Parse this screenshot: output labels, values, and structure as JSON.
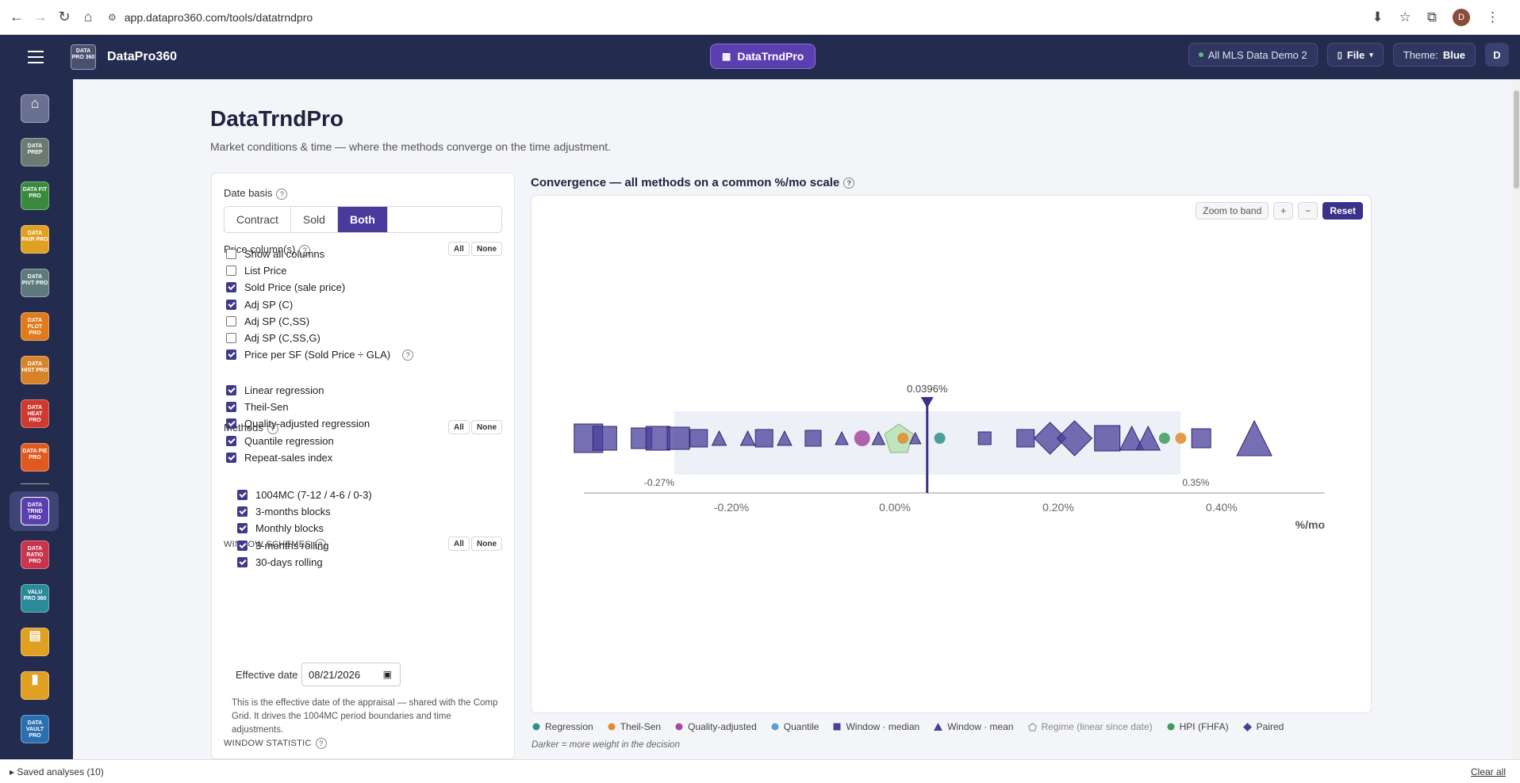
{
  "browser": {
    "url": "app.datapro360.com/tools/datatrndpro"
  },
  "topbar": {
    "brand": "DataPro360",
    "logo_text": "DATA PRO 360",
    "app": "DataTrndPro",
    "dataset": "All MLS Data Demo 2",
    "file": "File",
    "theme_label": "Theme:",
    "theme_value": "Blue",
    "user_initial": "D",
    "browser_avatar": "D"
  },
  "sidebar": {
    "items": [
      "DATA PREP",
      "DATA FIT PRO",
      "DATA PAIR PRO",
      "DATA PIVT PRO",
      "DATA PLOT PRO",
      "DATA HIST PRO",
      "DATA HEAT PRO",
      "DATA PIE PRO",
      "DATA TRND PRO",
      "DATA RATIO PRO",
      "VALU PRO 360",
      "",
      "",
      "DATA VAULT PRO"
    ]
  },
  "page": {
    "title": "DataTrndPro",
    "subtitle": "Market conditions & time — where the methods converge on the time adjustment."
  },
  "panel": {
    "date_basis_label": "Date basis",
    "date_basis": [
      "Contract",
      "Sold",
      "Both"
    ],
    "price_label": "Price column(s)",
    "all": "All",
    "none": "None",
    "price_items": [
      {
        "label": "Show all columns",
        "checked": false
      },
      {
        "label": "List Price",
        "checked": false
      },
      {
        "label": "Sold Price (sale price)",
        "checked": true
      },
      {
        "label": "Adj SP (C)",
        "checked": true
      },
      {
        "label": "Adj SP (C,SS)",
        "checked": false
      },
      {
        "label": "Adj SP (C,SS,G)",
        "checked": false
      },
      {
        "label": "Price per SF (Sold Price ÷ GLA)",
        "checked": true
      }
    ],
    "methods_label": "Methods",
    "methods": [
      {
        "label": "Linear regression",
        "checked": true
      },
      {
        "label": "Theil-Sen",
        "checked": true
      },
      {
        "label": "Quality-adjusted regression",
        "checked": true
      },
      {
        "label": "Quantile regression",
        "checked": true
      },
      {
        "label": "Repeat-sales index",
        "checked": true
      }
    ],
    "windows_label": "WINDOW SCHEMES",
    "windows": [
      {
        "label": "1004MC (7-12 / 4-6 / 0-3)",
        "checked": true
      },
      {
        "label": "3-months blocks",
        "checked": true
      },
      {
        "label": "Monthly blocks",
        "checked": true
      },
      {
        "label": "3-months rolling",
        "checked": true
      },
      {
        "label": "30-days rolling",
        "checked": true
      }
    ],
    "effective_label": "Effective date",
    "effective_value": "08/21/2026",
    "effective_note": "This is the effective date of the appraisal — shared with the Comp Grid. It drives the 1004MC period boundaries and time adjustments.",
    "statistic_label": "WINDOW STATISTIC"
  },
  "chart": {
    "title": "Convergence — all methods on a common %/mo scale",
    "zoom": "Zoom to band",
    "plus": "+",
    "minus": "−",
    "reset": "Reset",
    "legend": [
      {
        "label": "Regression",
        "color": "#2f8f8a",
        "shape": "circle"
      },
      {
        "label": "Theil-Sen",
        "color": "#e08b2c",
        "shape": "circle"
      },
      {
        "label": "Quality-adjusted",
        "color": "#a54aa0",
        "shape": "circle"
      },
      {
        "label": "Quantile",
        "color": "#5b9bd5",
        "shape": "circle"
      },
      {
        "label": "Window · median",
        "color": "#4a3f99",
        "shape": "square"
      },
      {
        "label": "Window · mean",
        "color": "#4a3f99",
        "shape": "triangle"
      },
      {
        "label": "Regime (linear since date)",
        "color": "#888888",
        "shape": "pentagon"
      },
      {
        "label": "HPI (FHFA)",
        "color": "#3c9a5a",
        "shape": "circle"
      },
      {
        "label": "Paired",
        "color": "#4a3f99",
        "shape": "diamond"
      }
    ],
    "note": "Darker = more weight in the decision"
  },
  "chart_data": {
    "type": "scatter",
    "title": "Convergence — all methods on a common %/mo scale",
    "xlabel": "%/mo",
    "x_ticks": [
      "-0.20%",
      "0.00%",
      "0.20%",
      "0.40%"
    ],
    "xlim": [
      -0.4,
      0.47
    ],
    "band": {
      "low": -0.27,
      "high": 0.35,
      "low_label": "-0.27%",
      "high_label": "0.35%"
    },
    "marker": {
      "value": 0.0396,
      "label": "0.0396%"
    },
    "points": [
      {
        "x": -0.375,
        "method": "Window · median",
        "size": 36
      },
      {
        "x": -0.355,
        "method": "Window · median",
        "size": 30
      },
      {
        "x": -0.31,
        "method": "Window · median",
        "size": 26
      },
      {
        "x": -0.29,
        "method": "Window · median",
        "size": 30
      },
      {
        "x": -0.265,
        "method": "Window · median",
        "size": 28
      },
      {
        "x": -0.24,
        "method": "Window · median",
        "size": 22
      },
      {
        "x": -0.215,
        "method": "Window · mean",
        "size": 18
      },
      {
        "x": -0.18,
        "method": "Window · mean",
        "size": 18
      },
      {
        "x": -0.16,
        "method": "Window · median",
        "size": 22
      },
      {
        "x": -0.135,
        "method": "Window · mean",
        "size": 18
      },
      {
        "x": -0.1,
        "method": "Window · median",
        "size": 20
      },
      {
        "x": -0.065,
        "method": "Window · mean",
        "size": 16
      },
      {
        "x": -0.04,
        "method": "Quality-adjusted",
        "size": 20
      },
      {
        "x": -0.02,
        "method": "Window · mean",
        "size": 16
      },
      {
        "x": 0.005,
        "method": "Regime (linear since date)",
        "size": 36
      },
      {
        "x": 0.01,
        "method": "Theil-Sen",
        "size": 14
      },
      {
        "x": 0.025,
        "method": "Window · mean",
        "size": 14
      },
      {
        "x": 0.055,
        "method": "Regression",
        "size": 14
      },
      {
        "x": 0.11,
        "method": "Window · median",
        "size": 16
      },
      {
        "x": 0.16,
        "method": "Window · median",
        "size": 22
      },
      {
        "x": 0.19,
        "method": "Paired",
        "size": 40
      },
      {
        "x": 0.22,
        "method": "Paired",
        "size": 44
      },
      {
        "x": 0.26,
        "method": "Window · median",
        "size": 32
      },
      {
        "x": 0.29,
        "method": "Window · mean",
        "size": 30
      },
      {
        "x": 0.31,
        "method": "Window · mean",
        "size": 30
      },
      {
        "x": 0.33,
        "method": "HPI (FHFA)",
        "size": 14
      },
      {
        "x": 0.35,
        "method": "Theil-Sen",
        "size": 14
      },
      {
        "x": 0.375,
        "method": "Window · median",
        "size": 24
      },
      {
        "x": 0.44,
        "method": "Window · mean",
        "size": 44
      }
    ]
  },
  "status": {
    "saved": "Saved analyses (10)",
    "clear": "Clear all"
  }
}
